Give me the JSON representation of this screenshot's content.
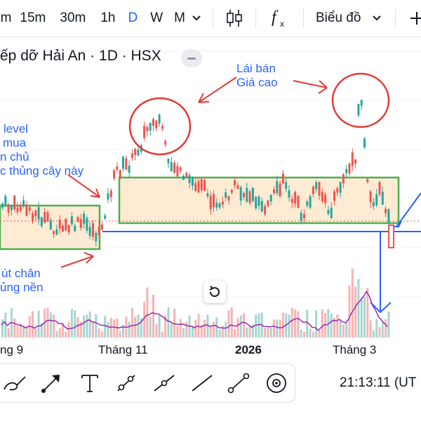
{
  "toolbar": {
    "timeframes": [
      {
        "label": "5m"
      },
      {
        "label": "15m"
      },
      {
        "label": "30m"
      },
      {
        "label": "1h"
      },
      {
        "label": "D"
      },
      {
        "label": "W"
      },
      {
        "label": "M"
      }
    ],
    "active_timeframe": "D",
    "indicators_icon": "candles-icon",
    "fx_icon": "fx-icon",
    "chart_type_label": "Biểu đồ",
    "chevron_icon": "chevron-down-icon"
  },
  "legend": {
    "symbol_text": "ếp dỡ Hải An · 1D · HSX"
  },
  "annotations": {
    "top_right_line1": "Lái bán",
    "top_right_line2": "Giá cao",
    "left_line1": "level",
    "left_line2": "mua",
    "left_line3": "n chủ",
    "left_line4": "c thủng cây này",
    "bottom_left_line1": "út chân",
    "bottom_left_line2": "ủng nền"
  },
  "xaxis": {
    "labels": [
      "ng 9",
      "Tháng 11",
      "2026",
      "Tháng 3"
    ]
  },
  "colors": {
    "up": "#26a69a",
    "down": "#ef5350",
    "accent": "#2962ff",
    "zone_fill": "#fce6c9",
    "zone_border": "#4caf50",
    "circle": "#e53935",
    "ma_line": "#9c27b0"
  },
  "drawing_tools": [
    {
      "icon": "brush-icon"
    },
    {
      "icon": "arrow-icon"
    },
    {
      "icon": "text-icon"
    },
    {
      "icon": "trend-line-icon"
    },
    {
      "icon": "ray-icon"
    },
    {
      "icon": "line-icon"
    },
    {
      "icon": "extended-line-icon"
    },
    {
      "icon": "eye-icon"
    }
  ],
  "clock": "21:13:11 (UT"
}
